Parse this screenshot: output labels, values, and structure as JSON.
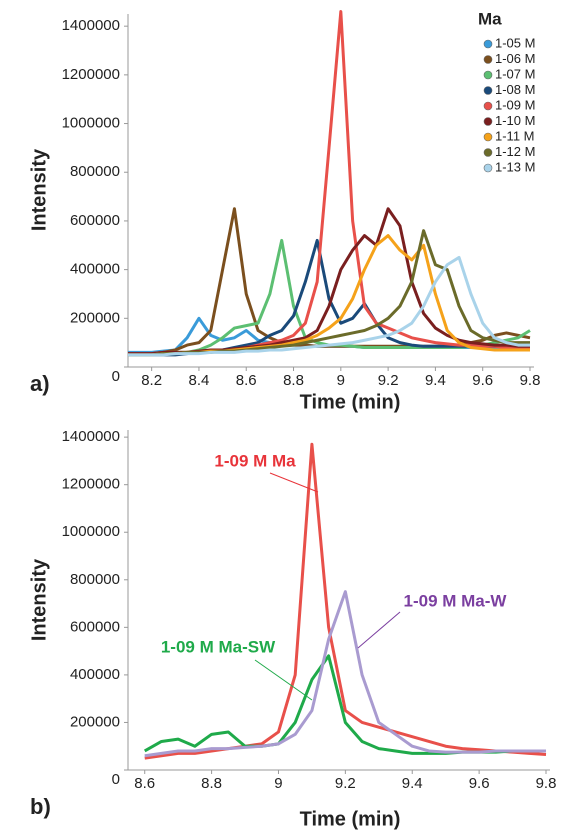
{
  "chart_data": [
    {
      "type": "line",
      "panel_label": "a)",
      "x_label": "Time (min)",
      "y_label": "Intensity",
      "legend_title": "Ma",
      "legend": "upper right",
      "x": [
        8.1,
        8.15,
        8.2,
        8.25,
        8.3,
        8.35,
        8.4,
        8.45,
        8.5,
        8.55,
        8.6,
        8.65,
        8.7,
        8.75,
        8.8,
        8.85,
        8.9,
        8.95,
        9.0,
        9.05,
        9.1,
        9.15,
        9.2,
        9.25,
        9.3,
        9.35,
        9.4,
        9.45,
        9.5,
        9.55,
        9.6,
        9.65,
        9.7,
        9.75,
        9.8
      ],
      "xlim": [
        8.1,
        9.8
      ],
      "xticks": [
        8.2,
        8.4,
        8.6,
        8.8,
        9,
        9.2,
        9.4,
        9.6,
        9.8
      ],
      "ylim": [
        0,
        1450000
      ],
      "yticks": [
        0,
        200000,
        400000,
        600000,
        800000,
        1000000,
        1200000,
        1400000
      ],
      "series": [
        {
          "name": "1-05 M",
          "color": "#3a9bd9",
          "values": [
            60000,
            60000,
            60000,
            65000,
            70000,
            120000,
            200000,
            130000,
            110000,
            120000,
            150000,
            110000,
            100000,
            90000,
            90000,
            90000,
            85000,
            85000,
            85000,
            85000,
            80000,
            80000,
            80000,
            80000,
            80000,
            80000,
            80000,
            80000,
            80000,
            80000,
            80000,
            80000,
            80000,
            80000,
            80000
          ]
        },
        {
          "name": "1-06 M",
          "color": "#7b4f1e",
          "values": [
            50000,
            50000,
            55000,
            60000,
            70000,
            90000,
            100000,
            150000,
            400000,
            650000,
            300000,
            150000,
            120000,
            100000,
            90000,
            90000,
            85000,
            85000,
            85000,
            85000,
            85000,
            85000,
            85000,
            85000,
            85000,
            85000,
            85000,
            85000,
            90000,
            100000,
            110000,
            130000,
            140000,
            130000,
            120000
          ]
        },
        {
          "name": "1-07 M",
          "color": "#5cbf72",
          "values": [
            50000,
            50000,
            50000,
            55000,
            60000,
            60000,
            70000,
            90000,
            120000,
            160000,
            170000,
            180000,
            300000,
            520000,
            250000,
            120000,
            100000,
            90000,
            90000,
            85000,
            80000,
            80000,
            80000,
            80000,
            80000,
            80000,
            80000,
            80000,
            80000,
            85000,
            90000,
            100000,
            110000,
            120000,
            150000
          ]
        },
        {
          "name": "1-08 M",
          "color": "#1a4a7a",
          "values": [
            50000,
            50000,
            50000,
            50000,
            50000,
            55000,
            60000,
            65000,
            70000,
            80000,
            90000,
            100000,
            130000,
            150000,
            210000,
            350000,
            520000,
            280000,
            180000,
            200000,
            260000,
            180000,
            120000,
            100000,
            90000,
            85000,
            85000,
            85000,
            85000,
            85000,
            85000,
            85000,
            85000,
            85000,
            85000
          ]
        },
        {
          "name": "1-09 M",
          "color": "#e8504a",
          "values": [
            55000,
            55000,
            55000,
            60000,
            60000,
            60000,
            65000,
            65000,
            70000,
            70000,
            80000,
            90000,
            100000,
            110000,
            130000,
            180000,
            350000,
            900000,
            1460000,
            600000,
            250000,
            180000,
            160000,
            140000,
            120000,
            110000,
            100000,
            95000,
            90000,
            90000,
            85000,
            85000,
            80000,
            80000,
            80000
          ]
        },
        {
          "name": "1-10 M",
          "color": "#7a1f1f",
          "values": [
            55000,
            55000,
            55000,
            60000,
            60000,
            60000,
            65000,
            70000,
            70000,
            75000,
            80000,
            85000,
            90000,
            100000,
            110000,
            120000,
            150000,
            250000,
            400000,
            480000,
            540000,
            500000,
            650000,
            580000,
            350000,
            220000,
            160000,
            130000,
            110000,
            100000,
            95000,
            90000,
            90000,
            85000,
            85000
          ]
        },
        {
          "name": "1-11 M",
          "color": "#f5a21a",
          "values": [
            50000,
            50000,
            50000,
            55000,
            55000,
            60000,
            60000,
            65000,
            65000,
            70000,
            75000,
            80000,
            85000,
            90000,
            100000,
            110000,
            130000,
            160000,
            200000,
            280000,
            400000,
            500000,
            540000,
            480000,
            440000,
            500000,
            300000,
            150000,
            100000,
            80000,
            75000,
            70000,
            70000,
            70000,
            70000
          ]
        },
        {
          "name": "1-12 M",
          "color": "#6b6b2a",
          "values": [
            50000,
            50000,
            50000,
            55000,
            55000,
            60000,
            60000,
            60000,
            65000,
            65000,
            70000,
            75000,
            80000,
            85000,
            90000,
            100000,
            110000,
            120000,
            130000,
            140000,
            150000,
            170000,
            200000,
            250000,
            350000,
            560000,
            420000,
            400000,
            250000,
            150000,
            120000,
            110000,
            100000,
            100000,
            100000
          ]
        },
        {
          "name": "1-13 M",
          "color": "#a9d3ea",
          "values": [
            50000,
            50000,
            50000,
            50000,
            55000,
            55000,
            55000,
            60000,
            60000,
            60000,
            65000,
            65000,
            70000,
            70000,
            75000,
            80000,
            85000,
            90000,
            95000,
            100000,
            110000,
            120000,
            130000,
            150000,
            180000,
            250000,
            350000,
            420000,
            450000,
            300000,
            180000,
            120000,
            100000,
            90000,
            90000
          ]
        }
      ]
    },
    {
      "type": "line",
      "panel_label": "b)",
      "x_label": "Time (min)",
      "y_label": "Intensity",
      "x": [
        8.6,
        8.65,
        8.7,
        8.75,
        8.8,
        8.85,
        8.9,
        8.95,
        9.0,
        9.05,
        9.1,
        9.15,
        9.2,
        9.25,
        9.3,
        9.35,
        9.4,
        9.45,
        9.5,
        9.55,
        9.6,
        9.65,
        9.7,
        9.75,
        9.8
      ],
      "xlim": [
        8.55,
        9.8
      ],
      "xticks": [
        8.6,
        8.8,
        9,
        9.2,
        9.4,
        9.6,
        9.8
      ],
      "ylim": [
        0,
        1430000
      ],
      "yticks": [
        0,
        200000,
        400000,
        600000,
        800000,
        1000000,
        1200000,
        1400000
      ],
      "series": [
        {
          "name": "1-09 M Ma",
          "color": "#e8504a",
          "values": [
            50000,
            60000,
            70000,
            70000,
            80000,
            90000,
            100000,
            110000,
            160000,
            400000,
            1370000,
            600000,
            250000,
            200000,
            180000,
            160000,
            140000,
            120000,
            100000,
            90000,
            85000,
            80000,
            75000,
            70000,
            65000
          ]
        },
        {
          "name": "1-09 M Ma-SW",
          "color": "#1faa4a",
          "values": [
            80000,
            120000,
            130000,
            100000,
            150000,
            160000,
            100000,
            100000,
            110000,
            200000,
            380000,
            480000,
            200000,
            120000,
            90000,
            80000,
            70000,
            70000,
            70000,
            75000,
            75000,
            75000,
            80000,
            80000,
            80000
          ]
        },
        {
          "name": "1-09 M Ma-W",
          "color": "#a99bd0",
          "values": [
            60000,
            70000,
            80000,
            80000,
            90000,
            90000,
            95000,
            100000,
            110000,
            150000,
            250000,
            550000,
            750000,
            400000,
            200000,
            150000,
            100000,
            80000,
            75000,
            75000,
            75000,
            80000,
            80000,
            80000,
            80000
          ]
        }
      ],
      "annotation_colors": [
        "#e8343a",
        "#1faa4a",
        "#7b3fa0"
      ]
    }
  ]
}
